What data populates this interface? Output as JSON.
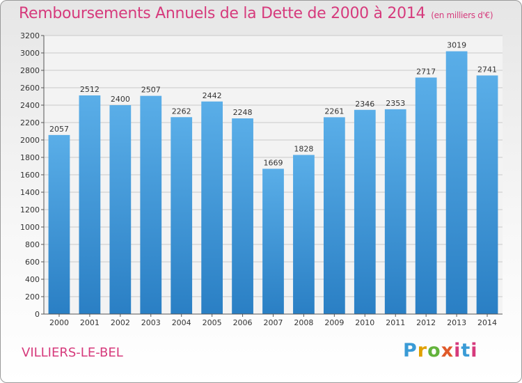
{
  "chart_data": {
    "type": "bar",
    "title": "Remboursements Annuels de la Dette de 2000 à 2014",
    "unit_note": "(en milliers d'€)",
    "categories": [
      "2000",
      "2001",
      "2002",
      "2003",
      "2004",
      "2005",
      "2006",
      "2007",
      "2008",
      "2009",
      "2010",
      "2011",
      "2012",
      "2013",
      "2014"
    ],
    "values": [
      2057,
      2512,
      2400,
      2507,
      2262,
      2442,
      2248,
      1669,
      1828,
      2261,
      2346,
      2353,
      2717,
      3019,
      2741
    ],
    "ylim": [
      0,
      3200
    ],
    "yticks": [
      0,
      200,
      400,
      600,
      800,
      1000,
      1200,
      1400,
      1600,
      1800,
      2000,
      2200,
      2400,
      2600,
      2800,
      3000,
      3200
    ],
    "grid": true,
    "xlabel": "",
    "ylabel": ""
  },
  "footer": {
    "city": "VILLIERS-LE-BEL",
    "logo": [
      "P",
      "r",
      "o",
      "x",
      "i",
      "t",
      "i"
    ]
  },
  "colors": {
    "bar_top": "#5aaee8",
    "bar_bottom": "#2a7fc4",
    "title": "#d63a7c",
    "grid": "#c8c8c8"
  }
}
